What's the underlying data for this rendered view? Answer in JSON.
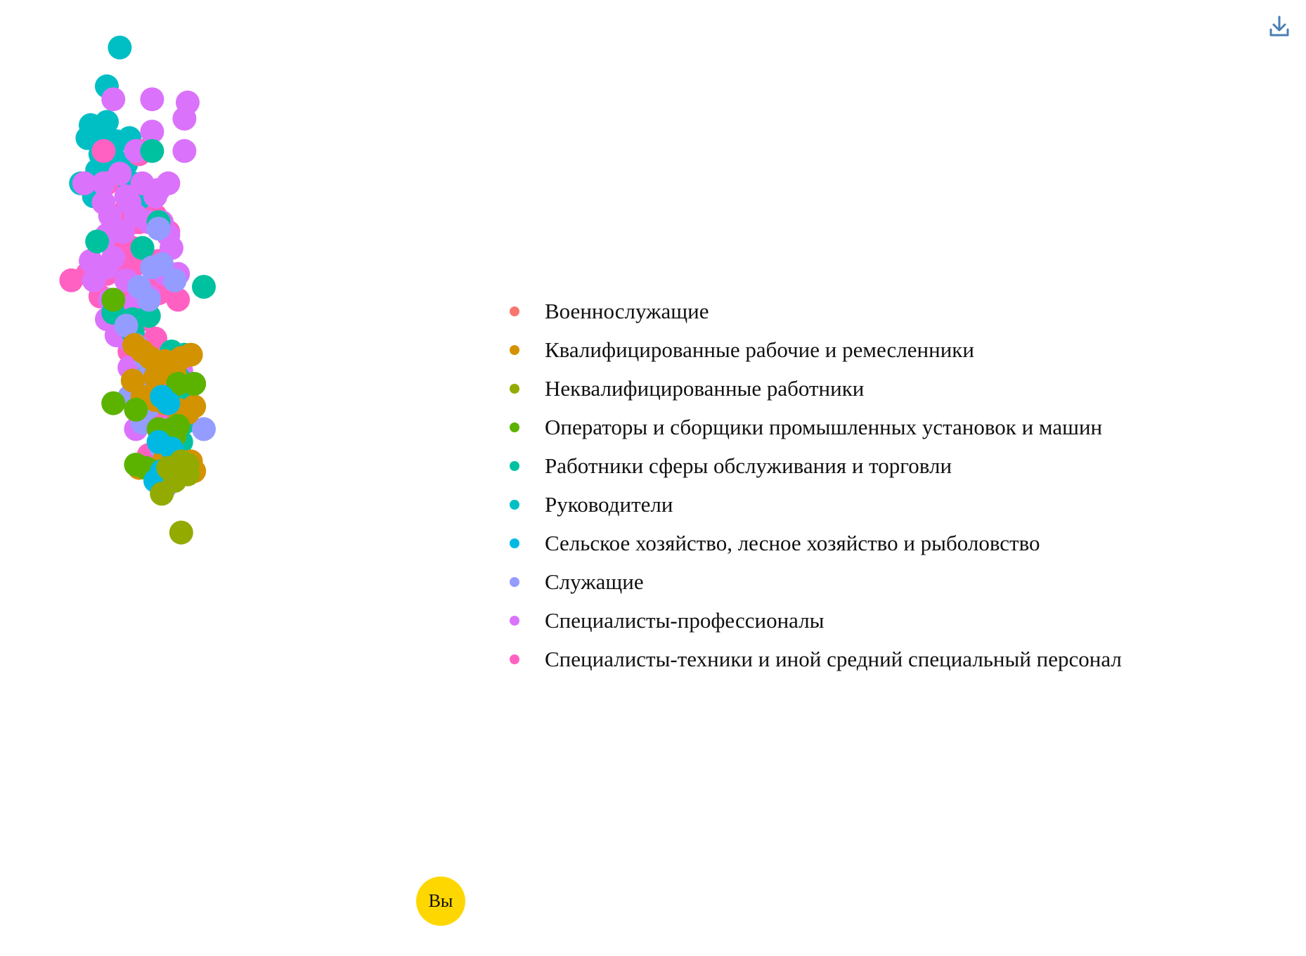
{
  "controls": {
    "download_icon": "download-icon",
    "download_color": "#4A7FB5"
  },
  "you_marker": {
    "label": "Вы",
    "color": "#FFD700"
  },
  "chart_data": {
    "type": "scatter",
    "title": "",
    "xlabel": "",
    "ylabel": "",
    "grid": false,
    "axes_visible": false,
    "legend_position": "right",
    "xlim": [
      0,
      100
    ],
    "ylim": [
      0,
      100
    ],
    "series": [
      {
        "name": "Военнослужащие",
        "color": "#F8766D",
        "points": []
      },
      {
        "name": "Квалифицированные рабочие и ремесленники",
        "color": "#D39200",
        "points": [
          [
            28.5,
            51
          ],
          [
            31,
            50
          ],
          [
            33.5,
            49
          ],
          [
            38,
            48.5
          ],
          [
            43,
            49
          ],
          [
            46,
            49.5
          ],
          [
            28,
            45.5
          ],
          [
            35,
            46
          ],
          [
            41,
            46.5
          ],
          [
            31,
            43
          ],
          [
            35,
            42.5
          ],
          [
            38,
            42
          ],
          [
            42,
            41
          ],
          [
            45,
            40.5
          ],
          [
            47,
            41.5
          ],
          [
            38,
            33.5
          ],
          [
            30,
            32
          ],
          [
            40,
            31.5
          ],
          [
            46,
            33
          ],
          [
            47,
            31.5
          ]
        ]
      },
      {
        "name": "Неквалифицированные работники",
        "color": "#93AA00",
        "points": [
          [
            43,
            33
          ],
          [
            39,
            32
          ],
          [
            45,
            31
          ],
          [
            41,
            30
          ],
          [
            45,
            32.5
          ],
          [
            37,
            28
          ],
          [
            43,
            22
          ]
        ]
      },
      {
        "name": "Операторы и сборщики промышленных установок и машин",
        "color": "#5BB300",
        "points": [
          [
            22,
            58
          ],
          [
            22,
            42
          ],
          [
            29,
            41
          ],
          [
            47,
            45
          ],
          [
            42,
            45
          ],
          [
            36,
            38
          ],
          [
            40,
            38
          ],
          [
            41,
            37
          ],
          [
            29,
            32.5
          ],
          [
            32,
            32
          ],
          [
            34,
            31.5
          ],
          [
            42,
            38.5
          ]
        ]
      },
      {
        "name": "Работники сферы обслуживания и торговли",
        "color": "#00C19F",
        "points": [
          [
            34,
            81
          ],
          [
            36,
            70
          ],
          [
            17,
            67
          ],
          [
            31,
            66
          ],
          [
            50,
            60
          ],
          [
            22,
            56
          ],
          [
            28,
            55
          ],
          [
            33,
            55.5
          ],
          [
            28,
            53
          ],
          [
            40,
            50
          ],
          [
            44,
            49.5
          ],
          [
            42,
            46
          ],
          [
            45,
            42
          ],
          [
            43,
            36
          ],
          [
            46,
            32
          ],
          [
            32,
            46
          ],
          [
            44,
            39
          ]
        ]
      },
      {
        "name": "Руководители",
        "color": "#00BFC4",
        "points": [
          [
            24,
            97
          ],
          [
            20,
            91
          ],
          [
            15,
            85
          ],
          [
            20,
            85.5
          ],
          [
            17,
            83
          ],
          [
            14,
            83
          ],
          [
            20,
            82.5
          ],
          [
            23,
            82.5
          ],
          [
            27,
            83
          ],
          [
            18,
            80.5
          ],
          [
            20,
            80
          ],
          [
            22,
            80
          ],
          [
            17,
            78
          ],
          [
            26,
            79
          ],
          [
            12,
            76
          ],
          [
            16,
            74
          ],
          [
            24,
            76.5
          ],
          [
            28,
            76
          ],
          [
            30,
            73
          ],
          [
            25,
            71
          ]
        ]
      },
      {
        "name": "Сельское хозяйство, лесное хозяйство и рыболовство",
        "color": "#00B9E3",
        "points": [
          [
            37,
            43
          ],
          [
            39,
            42
          ],
          [
            36,
            36
          ],
          [
            40,
            35
          ],
          [
            37,
            31.5
          ],
          [
            35,
            30
          ]
        ]
      },
      {
        "name": "Служащие",
        "color": "#959CFF",
        "points": [
          [
            36,
            69
          ],
          [
            34,
            63
          ],
          [
            37,
            63.5
          ],
          [
            41,
            61
          ],
          [
            30,
            60
          ],
          [
            33,
            58
          ],
          [
            26,
            54
          ],
          [
            29,
            51
          ],
          [
            32,
            49
          ],
          [
            50,
            38
          ],
          [
            30,
            45.5
          ],
          [
            27,
            43
          ],
          [
            33,
            41.5
          ],
          [
            31,
            39
          ],
          [
            40,
            36
          ],
          [
            37,
            35
          ],
          [
            38,
            29
          ]
        ]
      },
      {
        "name": "Специалисты-профессионалы",
        "color": "#DB72FB",
        "points": [
          [
            34,
            89
          ],
          [
            45,
            88.5
          ],
          [
            22,
            89
          ],
          [
            34,
            84
          ],
          [
            44,
            86
          ],
          [
            44,
            81
          ],
          [
            29,
            81
          ],
          [
            13,
            76
          ],
          [
            19,
            76
          ],
          [
            24,
            77.5
          ],
          [
            31,
            76
          ],
          [
            36,
            75
          ],
          [
            39,
            76
          ],
          [
            19,
            73
          ],
          [
            26,
            74
          ],
          [
            35,
            74
          ],
          [
            21,
            71
          ],
          [
            27,
            73
          ],
          [
            29,
            71
          ],
          [
            33,
            70
          ],
          [
            37,
            70
          ],
          [
            39,
            68
          ],
          [
            20,
            68
          ],
          [
            25,
            68.5
          ],
          [
            31,
            66
          ],
          [
            15,
            64
          ],
          [
            22,
            64.5
          ],
          [
            40,
            66
          ],
          [
            42,
            62
          ],
          [
            16,
            61
          ],
          [
            20,
            63
          ],
          [
            26,
            61
          ],
          [
            38,
            62
          ],
          [
            21,
            58
          ],
          [
            29,
            57.5
          ],
          [
            33,
            58.5
          ],
          [
            20,
            55
          ],
          [
            24,
            54
          ],
          [
            26,
            52
          ],
          [
            23,
            52.5
          ],
          [
            30,
            48
          ],
          [
            34,
            48
          ],
          [
            43,
            47
          ],
          [
            27,
            47.5
          ],
          [
            29,
            38
          ],
          [
            38,
            38
          ],
          [
            42,
            36
          ]
        ]
      },
      {
        "name": "Специалисты-техники и иной средний специальный персонал",
        "color": "#FF61C3",
        "points": [
          [
            31,
            81
          ],
          [
            30,
            80.5
          ],
          [
            19,
            81
          ],
          [
            20,
            76
          ],
          [
            26,
            72
          ],
          [
            29,
            70
          ],
          [
            35,
            71
          ],
          [
            22,
            69.5
          ],
          [
            25,
            66
          ],
          [
            28,
            66
          ],
          [
            30,
            70
          ],
          [
            39,
            68.5
          ],
          [
            23,
            64
          ],
          [
            29,
            63.5
          ],
          [
            25,
            62
          ],
          [
            34,
            63
          ],
          [
            36,
            64
          ],
          [
            9,
            61
          ],
          [
            14,
            62
          ],
          [
            20,
            62
          ],
          [
            18,
            58.5
          ],
          [
            23,
            58
          ],
          [
            27,
            59
          ],
          [
            36,
            61
          ],
          [
            42,
            58
          ],
          [
            24,
            55
          ],
          [
            28,
            57
          ],
          [
            32,
            55
          ],
          [
            36,
            59
          ],
          [
            27,
            50
          ],
          [
            35,
            52
          ],
          [
            29,
            48
          ],
          [
            33,
            45
          ],
          [
            38,
            44
          ],
          [
            34,
            40
          ],
          [
            41,
            40
          ],
          [
            40,
            43.5
          ],
          [
            36,
            38.5
          ],
          [
            33,
            34
          ]
        ]
      }
    ]
  }
}
